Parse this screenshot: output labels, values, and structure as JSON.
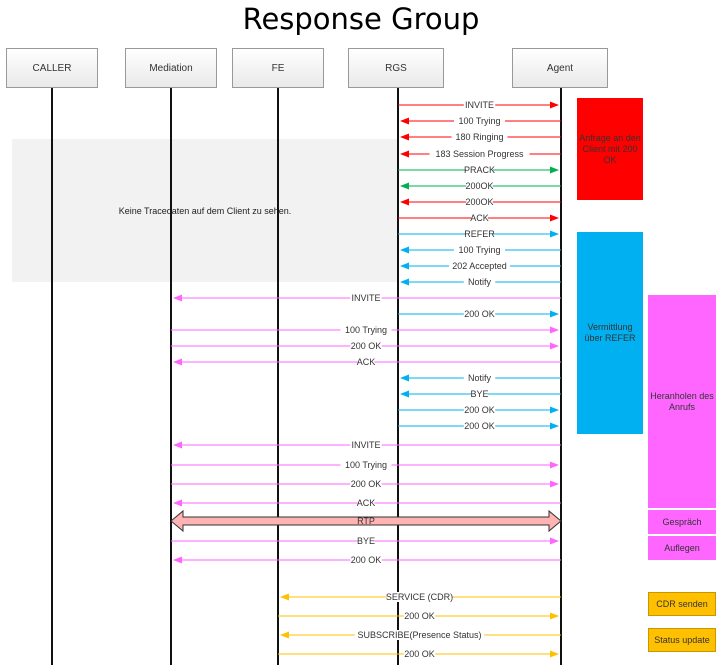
{
  "title": "Response Group",
  "participants": [
    {
      "id": "caller",
      "name": "CALLER"
    },
    {
      "id": "mediation",
      "name": "Mediation"
    },
    {
      "id": "fe",
      "name": "FE"
    },
    {
      "id": "rgs",
      "name": "RGS"
    },
    {
      "id": "agent",
      "name": "Agent"
    }
  ],
  "no_trace_note": "Keine Tracedaten auf dem Client zu sehen.",
  "colors": {
    "red": "#ff0000",
    "green": "#00b050",
    "blue": "#00b0f0",
    "magenta": "#ff66ff",
    "orange": "#ffc000",
    "rtp_fill": "#ffb3b3"
  },
  "messages": [
    {
      "label": "INVITE",
      "from": "rgs",
      "to": "agent",
      "color": "red"
    },
    {
      "label": "100 Trying",
      "from": "agent",
      "to": "rgs",
      "color": "red"
    },
    {
      "label": "180 Ringing",
      "from": "agent",
      "to": "rgs",
      "color": "red"
    },
    {
      "label": "183 Session Progress",
      "from": "agent",
      "to": "rgs",
      "color": "red"
    },
    {
      "label": "PRACK",
      "from": "rgs",
      "to": "agent",
      "color": "green"
    },
    {
      "label": "200OK",
      "from": "agent",
      "to": "rgs",
      "color": "green"
    },
    {
      "label": "200OK",
      "from": "agent",
      "to": "rgs",
      "color": "red"
    },
    {
      "label": "ACK",
      "from": "rgs",
      "to": "agent",
      "color": "red"
    },
    {
      "label": "REFER",
      "from": "rgs",
      "to": "agent",
      "color": "blue"
    },
    {
      "label": "100 Trying",
      "from": "agent",
      "to": "rgs",
      "color": "blue"
    },
    {
      "label": "202 Accepted",
      "from": "agent",
      "to": "rgs",
      "color": "blue"
    },
    {
      "label": "Notify",
      "from": "agent",
      "to": "rgs",
      "color": "blue"
    },
    {
      "label": "INVITE",
      "from": "agent",
      "to": "mediation",
      "color": "magenta"
    },
    {
      "label": "200 OK",
      "from": "rgs",
      "to": "agent",
      "color": "blue"
    },
    {
      "label": "100 Trying",
      "from": "mediation",
      "to": "agent",
      "color": "magenta"
    },
    {
      "label": "200 OK",
      "from": "mediation",
      "to": "agent",
      "color": "magenta"
    },
    {
      "label": "ACK",
      "from": "agent",
      "to": "mediation",
      "color": "magenta"
    },
    {
      "label": "Notify",
      "from": "agent",
      "to": "rgs",
      "color": "blue"
    },
    {
      "label": "BYE",
      "from": "agent",
      "to": "rgs",
      "color": "blue"
    },
    {
      "label": "200 OK",
      "from": "rgs",
      "to": "agent",
      "color": "blue"
    },
    {
      "label": "200 OK",
      "from": "rgs",
      "to": "agent",
      "color": "blue"
    },
    {
      "label": "INVITE",
      "from": "agent",
      "to": "mediation",
      "color": "magenta"
    },
    {
      "label": "100 Trying",
      "from": "mediation",
      "to": "agent",
      "color": "magenta"
    },
    {
      "label": "200 OK",
      "from": "mediation",
      "to": "agent",
      "color": "magenta"
    },
    {
      "label": "ACK",
      "from": "agent",
      "to": "mediation",
      "color": "magenta"
    },
    {
      "label": "RTP",
      "from": "mediation",
      "to": "agent",
      "color": "rtp_fill",
      "bidirectional": true
    },
    {
      "label": "BYE",
      "from": "mediation",
      "to": "agent",
      "color": "magenta"
    },
    {
      "label": "200 OK",
      "from": "agent",
      "to": "mediation",
      "color": "magenta"
    },
    {
      "label": "SERVICE (CDR)",
      "from": "agent",
      "to": "fe",
      "color": "orange"
    },
    {
      "label": "200 OK",
      "from": "fe",
      "to": "agent",
      "color": "orange"
    },
    {
      "label": "SUBSCRIBE(Presence Status)",
      "from": "agent",
      "to": "fe",
      "color": "orange"
    },
    {
      "label": "200 OK",
      "from": "fe",
      "to": "agent",
      "color": "orange"
    }
  ],
  "notes": [
    {
      "id": "anfrage",
      "text": "Anfrage an den Client mit 200 OK",
      "color": "red"
    },
    {
      "id": "vermittlung",
      "text": "Vermittlung über REFER",
      "color": "blue"
    },
    {
      "id": "heranholen",
      "text": "Heranholen des Anrufs",
      "color": "magenta"
    },
    {
      "id": "gespraech",
      "text": "Gespräch",
      "color": "magenta"
    },
    {
      "id": "auflegen",
      "text": "Auflegen",
      "color": "magenta"
    },
    {
      "id": "cdr",
      "text": "CDR senden",
      "color": "orange"
    },
    {
      "id": "status",
      "text": "Status update",
      "color": "orange"
    }
  ]
}
